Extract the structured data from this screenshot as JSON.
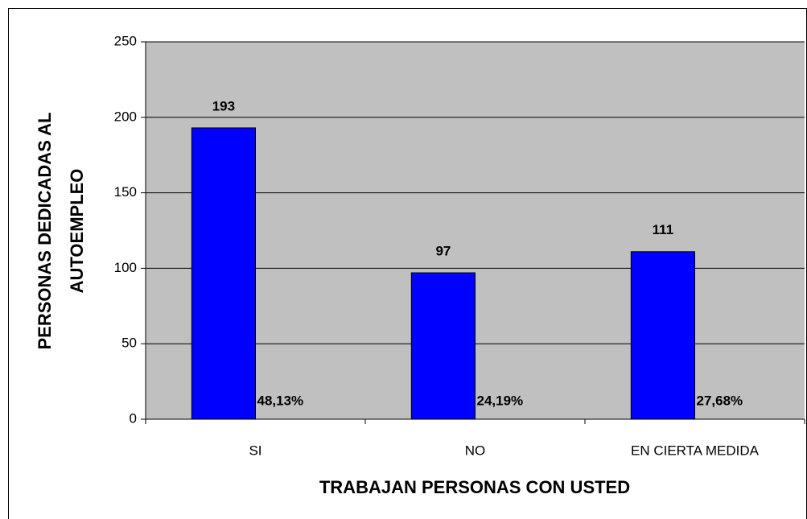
{
  "chart_data": {
    "type": "bar",
    "categories": [
      "SI",
      "NO",
      "EN CIERTA MEDIDA"
    ],
    "values": [
      193,
      97,
      111
    ],
    "percent_labels": [
      "48,13%",
      "24,19%",
      "27,68%"
    ],
    "color": "#0000ff",
    "xlabel": "TRABAJAN PERSONAS CON USTED",
    "ylabel": [
      "PERSONAS DEDICADAS AL",
      "AUTOEMPLEO"
    ],
    "ylim": [
      0,
      250
    ],
    "yticks": [
      0,
      50,
      100,
      150,
      200,
      250
    ],
    "grid": true
  }
}
